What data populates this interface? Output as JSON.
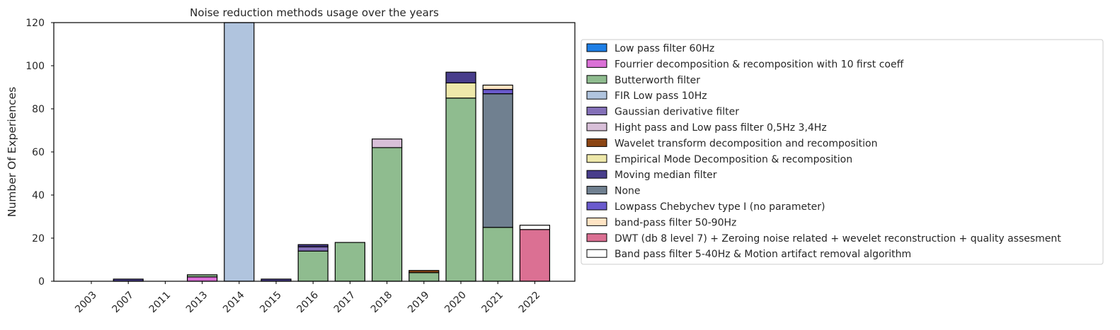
{
  "chart_data": {
    "type": "bar",
    "stacked": true,
    "title": "Noise reduction methods usage over the years",
    "xlabel": "",
    "ylabel": "Number Of Experiences",
    "ylim": [
      0,
      120
    ],
    "yticks": [
      0,
      20,
      40,
      60,
      80,
      100,
      120
    ],
    "grid": false,
    "legend_position": "right",
    "categories": [
      "2003",
      "2007",
      "2011",
      "2013",
      "2014",
      "2015",
      "2016",
      "2017",
      "2018",
      "2019",
      "2020",
      "2021",
      "2022"
    ],
    "series": [
      {
        "name": "Low pass filter 60Hz",
        "color": "#1e7fe6",
        "values": [
          0,
          0,
          0,
          0,
          0,
          0,
          0,
          0,
          0,
          0,
          0,
          0,
          0
        ]
      },
      {
        "name": "Fourrier decomposition & recomposition with 10 first coeff",
        "color": "#da70d6",
        "values": [
          0,
          0,
          0,
          2,
          0,
          0,
          0,
          0,
          0,
          0,
          0,
          0,
          0
        ]
      },
      {
        "name": "Butterworth filter",
        "color": "#8fbc8f",
        "values": [
          0,
          0,
          0,
          1,
          0,
          0,
          14,
          18,
          62,
          4,
          85,
          25,
          0
        ]
      },
      {
        "name": "FIR Low pass 10Hz",
        "color": "#b0c4de",
        "values": [
          0,
          0,
          0,
          0,
          120,
          0,
          0,
          0,
          0,
          0,
          0,
          0,
          0
        ]
      },
      {
        "name": "Gaussian derivative filter",
        "color": "#8470b8",
        "values": [
          0,
          0,
          0,
          0,
          0,
          0,
          2,
          0,
          0,
          0,
          0,
          0,
          0
        ]
      },
      {
        "name": "Hight pass and Low pass filter 0,5Hz 3,4Hz",
        "color": "#d8bfd8",
        "values": [
          0,
          0,
          0,
          0,
          0,
          0,
          0,
          0,
          4,
          0,
          0,
          0,
          0
        ]
      },
      {
        "name": "Wavelet transform decomposition and recomposition",
        "color": "#8b4513",
        "values": [
          0,
          0,
          0,
          0,
          0,
          0,
          0,
          0,
          0,
          1,
          0,
          0,
          0
        ]
      },
      {
        "name": "Empirical Mode Decomposition & recomposition",
        "color": "#eee8aa",
        "values": [
          0,
          0,
          0,
          0,
          0,
          0,
          0,
          0,
          0,
          0,
          7,
          0,
          0
        ]
      },
      {
        "name": "Moving median filter",
        "color": "#483d8b",
        "values": [
          0,
          1,
          0,
          0,
          0,
          1,
          1,
          0,
          0,
          0,
          5,
          0,
          0
        ]
      },
      {
        "name": "None",
        "color": "#708090",
        "values": [
          0,
          0,
          0,
          0,
          0,
          0,
          0,
          0,
          0,
          0,
          0,
          62,
          0
        ]
      },
      {
        "name": "Lowpass Chebychev type I (no parameter)",
        "color": "#6a5acd",
        "values": [
          0,
          0,
          0,
          0,
          0,
          0,
          0,
          0,
          0,
          0,
          0,
          2,
          0
        ]
      },
      {
        "name": "band-pass filter 50-90Hz",
        "color": "#ffe4c4",
        "values": [
          0,
          0,
          0,
          0,
          0,
          0,
          0,
          0,
          0,
          0,
          0,
          2,
          0
        ]
      },
      {
        "name": "DWT (db 8 level 7) + Zeroing noise related + wevelet reconstruction + quality assesment",
        "color": "#db7093",
        "values": [
          0,
          0,
          0,
          0,
          0,
          0,
          0,
          0,
          0,
          0,
          0,
          0,
          24
        ]
      },
      {
        "name": "Band pass filter 5-40Hz & Motion artifact removal algorithm",
        "color": "#ffffff",
        "values": [
          0,
          0,
          0,
          0,
          0,
          0,
          0,
          0,
          0,
          0,
          0,
          0,
          2
        ]
      }
    ]
  }
}
